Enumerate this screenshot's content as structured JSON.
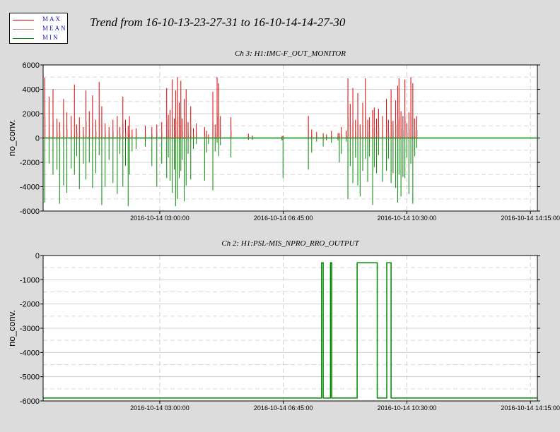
{
  "legend": {
    "items": [
      {
        "label": "MAX",
        "color": "#dd0000"
      },
      {
        "label": "MEAN",
        "color": "#d08080"
      },
      {
        "label": "MIN",
        "color": "#008800"
      }
    ]
  },
  "title": "Trend from 16-10-13-23-27-31 to 16-10-14-14-27-30",
  "chart_data": [
    {
      "type": "line",
      "title": "Ch 3: H1:IMC-F_OUT_MONITOR",
      "ylabel": "no_conv.",
      "xlabel": "",
      "ylim": [
        -6000,
        6000
      ],
      "yticks": [
        6000,
        4000,
        2000,
        0,
        -2000,
        -4000,
        -6000
      ],
      "xticks": [
        "2016-10-14 03:00:00",
        "2016-10-14 06:45:00",
        "2016-10-14 10:30:00",
        "2016-10-14 14:15:00"
      ],
      "x_range_hours": [
        0,
        15
      ],
      "xtick_hours": [
        3.54,
        7.29,
        11.04,
        14.79
      ],
      "grid": true,
      "series": [
        {
          "name": "MAX",
          "color": "#dd0000"
        },
        {
          "name": "MEAN",
          "color": "#d08080"
        },
        {
          "name": "MIN",
          "color": "#008800"
        }
      ],
      "spikes": [
        {
          "x": 0.05,
          "max": 4950,
          "min": -5300
        },
        {
          "x": 0.18,
          "max": 3400,
          "min": -2100
        },
        {
          "x": 0.3,
          "max": 4000,
          "min": -3000
        },
        {
          "x": 0.42,
          "max": 1600,
          "min": -2600
        },
        {
          "x": 0.5,
          "max": 1300,
          "min": -5400
        },
        {
          "x": 0.62,
          "max": 3200,
          "min": -3900
        },
        {
          "x": 0.72,
          "max": 2100,
          "min": -4500
        },
        {
          "x": 0.85,
          "max": 1800,
          "min": -2500
        },
        {
          "x": 0.95,
          "max": 4400,
          "min": -3000
        },
        {
          "x": 1.02,
          "max": 1100,
          "min": -1500
        },
        {
          "x": 1.1,
          "max": 1700,
          "min": -4200
        },
        {
          "x": 1.22,
          "max": 900,
          "min": -2100
        },
        {
          "x": 1.3,
          "max": 3900,
          "min": -3400
        },
        {
          "x": 1.4,
          "max": 2200,
          "min": -2000
        },
        {
          "x": 1.5,
          "max": 3500,
          "min": -4100
        },
        {
          "x": 1.6,
          "max": 1500,
          "min": -2900
        },
        {
          "x": 1.7,
          "max": 4600,
          "min": -1400
        },
        {
          "x": 1.78,
          "max": 2600,
          "min": -5500
        },
        {
          "x": 1.88,
          "max": 1200,
          "min": -4000
        },
        {
          "x": 2.0,
          "max": 900,
          "min": -1800
        },
        {
          "x": 2.12,
          "max": 1500,
          "min": -3700
        },
        {
          "x": 2.25,
          "max": 1800,
          "min": -4600
        },
        {
          "x": 2.33,
          "max": 900,
          "min": -1300
        },
        {
          "x": 2.42,
          "max": 3400,
          "min": -4000
        },
        {
          "x": 2.5,
          "max": 1500,
          "min": -2300
        },
        {
          "x": 2.58,
          "max": 1000,
          "min": -5600
        },
        {
          "x": 2.62,
          "max": 1800,
          "min": -3000
        },
        {
          "x": 2.7,
          "max": 700,
          "min": -1100
        },
        {
          "x": 2.82,
          "max": 800,
          "min": -900
        },
        {
          "x": 3.1,
          "max": 1000,
          "min": -700
        },
        {
          "x": 3.3,
          "max": 900,
          "min": -2300
        },
        {
          "x": 3.45,
          "max": 1100,
          "min": -4000
        },
        {
          "x": 3.6,
          "max": 1300,
          "min": -2100
        },
        {
          "x": 3.75,
          "max": 4100,
          "min": -3300
        },
        {
          "x": 3.8,
          "max": 1900,
          "min": -1600
        },
        {
          "x": 3.85,
          "max": 2300,
          "min": -3500
        },
        {
          "x": 3.92,
          "max": 4800,
          "min": -4500
        },
        {
          "x": 3.98,
          "max": 1600,
          "min": -2600
        },
        {
          "x": 4.02,
          "max": 3900,
          "min": -5600
        },
        {
          "x": 4.08,
          "max": 5000,
          "min": -5000
        },
        {
          "x": 4.13,
          "max": 2900,
          "min": -3300
        },
        {
          "x": 4.18,
          "max": 4700,
          "min": -2700
        },
        {
          "x": 4.22,
          "max": 1600,
          "min": -1800
        },
        {
          "x": 4.28,
          "max": 3200,
          "min": -5200
        },
        {
          "x": 4.34,
          "max": 4000,
          "min": -3900
        },
        {
          "x": 4.4,
          "max": 1300,
          "min": -1300
        },
        {
          "x": 4.48,
          "max": 2600,
          "min": -3400
        },
        {
          "x": 4.56,
          "max": 800,
          "min": -900
        },
        {
          "x": 4.65,
          "max": 1200,
          "min": -500
        },
        {
          "x": 4.9,
          "max": 900,
          "min": -3500
        },
        {
          "x": 4.96,
          "max": 600,
          "min": -1200
        },
        {
          "x": 5.02,
          "max": 300,
          "min": -500
        },
        {
          "x": 5.15,
          "max": 3800,
          "min": -4300
        },
        {
          "x": 5.22,
          "max": 1100,
          "min": -1100
        },
        {
          "x": 5.28,
          "max": 5000,
          "min": -400
        },
        {
          "x": 5.33,
          "max": 4500,
          "min": -1500
        },
        {
          "x": 5.38,
          "max": 1800,
          "min": -600
        },
        {
          "x": 5.7,
          "max": 1700,
          "min": -1600
        },
        {
          "x": 6.23,
          "max": 350,
          "min": -150
        },
        {
          "x": 6.35,
          "max": 200,
          "min": -150
        },
        {
          "x": 7.25,
          "max": 150,
          "min": -200
        },
        {
          "x": 7.28,
          "max": 200,
          "min": -3300
        },
        {
          "x": 8.05,
          "max": 1800,
          "min": -2600
        },
        {
          "x": 8.15,
          "max": 700,
          "min": -1200
        },
        {
          "x": 8.3,
          "max": 500,
          "min": -300
        },
        {
          "x": 8.5,
          "max": 400,
          "min": -700
        },
        {
          "x": 8.6,
          "max": 300,
          "min": -200
        },
        {
          "x": 8.75,
          "max": 600,
          "min": -400
        },
        {
          "x": 8.95,
          "max": 400,
          "min": -200
        },
        {
          "x": 8.99,
          "max": 400,
          "min": -2000
        },
        {
          "x": 9.05,
          "max": 900,
          "min": -1300
        },
        {
          "x": 9.2,
          "max": 600,
          "min": -300
        },
        {
          "x": 9.25,
          "max": 4900,
          "min": -5000
        },
        {
          "x": 9.32,
          "max": 2800,
          "min": -2300
        },
        {
          "x": 9.4,
          "max": 4100,
          "min": -3700
        },
        {
          "x": 9.48,
          "max": 1500,
          "min": -1600
        },
        {
          "x": 9.55,
          "max": 3700,
          "min": -3900
        },
        {
          "x": 9.62,
          "max": 1100,
          "min": -4800
        },
        {
          "x": 9.7,
          "max": 2900,
          "min": -2700
        },
        {
          "x": 9.78,
          "max": 4900,
          "min": -1700
        },
        {
          "x": 9.85,
          "max": 1500,
          "min": -3600
        },
        {
          "x": 9.9,
          "max": 1700,
          "min": -1500
        },
        {
          "x": 10.0,
          "max": 2300,
          "min": -5500
        },
        {
          "x": 10.05,
          "max": 2500,
          "min": -2400
        },
        {
          "x": 10.12,
          "max": 1600,
          "min": -2900
        },
        {
          "x": 10.18,
          "max": 2400,
          "min": -1400
        },
        {
          "x": 10.3,
          "max": 1800,
          "min": -3600
        },
        {
          "x": 10.42,
          "max": 3200,
          "min": -2700
        },
        {
          "x": 10.48,
          "max": 1500,
          "min": -1700
        },
        {
          "x": 10.56,
          "max": 4000,
          "min": -3700
        },
        {
          "x": 10.62,
          "max": 1400,
          "min": -2900
        },
        {
          "x": 10.7,
          "max": 3100,
          "min": -4100
        },
        {
          "x": 10.76,
          "max": 4300,
          "min": -5300
        },
        {
          "x": 10.8,
          "max": 4900,
          "min": -3000
        },
        {
          "x": 10.86,
          "max": 2200,
          "min": -4800
        },
        {
          "x": 10.92,
          "max": 1800,
          "min": -3200
        },
        {
          "x": 10.98,
          "max": 4800,
          "min": -3300
        },
        {
          "x": 11.04,
          "max": 1200,
          "min": -1600
        },
        {
          "x": 11.1,
          "max": 2100,
          "min": -4600
        },
        {
          "x": 11.16,
          "max": 5000,
          "min": -2100
        },
        {
          "x": 11.22,
          "max": 4500,
          "min": -5400
        },
        {
          "x": 11.28,
          "max": 1600,
          "min": -1500
        },
        {
          "x": 11.34,
          "max": 1800,
          "min": -800
        }
      ]
    },
    {
      "type": "line",
      "title": "Ch 2: H1:PSL-MIS_NPRO_RRO_OUTPUT",
      "ylabel": "no_conv.",
      "xlabel": "",
      "ylim": [
        -6000,
        0
      ],
      "yticks": [
        0,
        -1000,
        -2000,
        -3000,
        -4000,
        -5000,
        -6000
      ],
      "xticks": [
        "2016-10-14 03:00:00",
        "2016-10-14 06:45:00",
        "2016-10-14 10:30:00",
        "2016-10-14 14:15:00"
      ],
      "x_range_hours": [
        0,
        15
      ],
      "xtick_hours": [
        3.54,
        7.29,
        11.04,
        14.79
      ],
      "grid": true,
      "series": [
        {
          "name": "MIN",
          "color": "#008800"
        }
      ],
      "step_points": [
        [
          0,
          -5880
        ],
        [
          8.45,
          -5880
        ],
        [
          8.45,
          -300
        ],
        [
          8.5,
          -300
        ],
        [
          8.5,
          -5880
        ],
        [
          8.72,
          -5880
        ],
        [
          8.72,
          -300
        ],
        [
          8.76,
          -300
        ],
        [
          8.76,
          -5880
        ],
        [
          9.53,
          -5880
        ],
        [
          9.53,
          -300
        ],
        [
          10.14,
          -300
        ],
        [
          10.14,
          -5880
        ],
        [
          10.43,
          -5880
        ],
        [
          10.43,
          -300
        ],
        [
          10.56,
          -300
        ],
        [
          10.56,
          -5880
        ],
        [
          15,
          -5880
        ]
      ]
    }
  ]
}
